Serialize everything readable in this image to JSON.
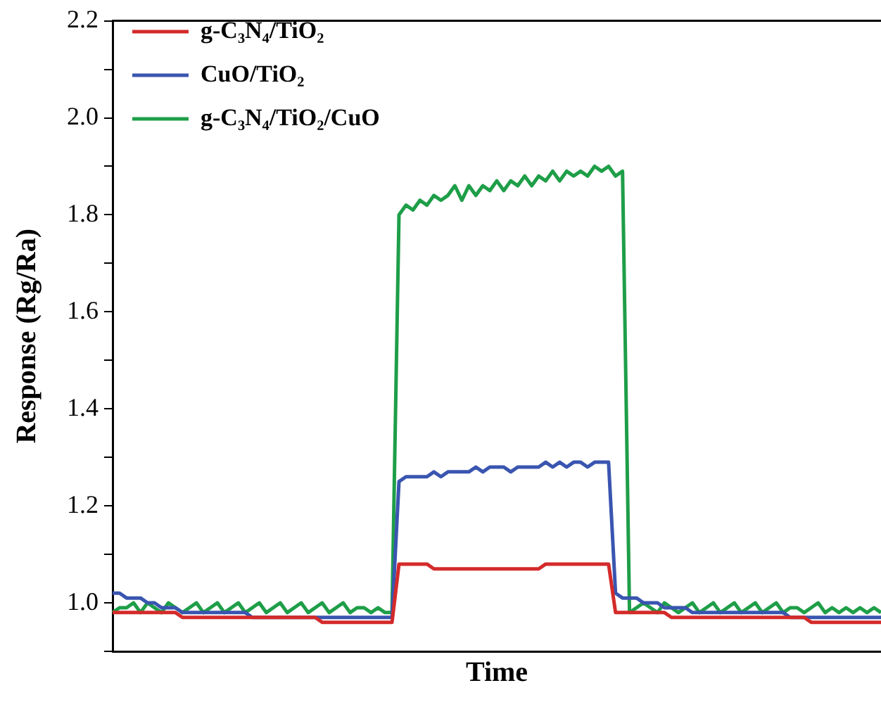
{
  "chart_data": {
    "type": "line",
    "xlabel": "Time",
    "ylabel": "Response (Rg/Ra)",
    "categories": [
      null,
      null,
      null,
      null,
      null,
      null,
      null,
      null,
      null,
      null,
      null,
      null,
      null,
      null,
      null,
      null,
      null,
      null,
      null,
      null,
      null,
      null,
      null,
      null,
      null,
      null,
      null,
      null,
      null,
      null,
      null,
      null,
      null,
      null,
      null,
      null,
      null,
      null,
      null,
      null,
      null,
      null,
      null,
      null,
      null,
      null,
      null,
      null,
      null,
      null,
      null,
      null,
      null,
      null,
      null,
      null,
      null,
      null,
      null,
      null,
      null,
      null,
      null,
      null,
      null,
      null,
      null,
      null,
      null,
      null,
      null,
      null,
      null,
      null,
      null,
      null,
      null,
      null,
      null,
      null,
      null,
      null,
      null,
      null,
      null,
      null,
      null,
      null,
      null,
      null,
      null,
      null,
      null,
      null,
      null,
      null,
      null,
      null,
      null,
      null,
      null,
      null,
      null,
      null,
      null,
      null,
      null,
      null,
      null,
      null,
      null
    ],
    "series": [
      {
        "name": "g-C₃N₄/TiO₂",
        "color": "#d42a2a",
        "values": [
          0.98,
          0.98,
          0.98,
          0.98,
          0.98,
          0.98,
          0.98,
          0.98,
          0.98,
          0.98,
          0.97,
          0.97,
          0.97,
          0.97,
          0.97,
          0.97,
          0.97,
          0.97,
          0.97,
          0.97,
          0.97,
          0.97,
          0.97,
          0.97,
          0.97,
          0.97,
          0.97,
          0.97,
          0.97,
          0.97,
          0.96,
          0.96,
          0.96,
          0.96,
          0.96,
          0.96,
          0.96,
          0.96,
          0.96,
          0.96,
          0.96,
          1.08,
          1.08,
          1.08,
          1.08,
          1.08,
          1.07,
          1.07,
          1.07,
          1.07,
          1.07,
          1.07,
          1.07,
          1.07,
          1.07,
          1.07,
          1.07,
          1.07,
          1.07,
          1.07,
          1.07,
          1.07,
          1.08,
          1.08,
          1.08,
          1.08,
          1.08,
          1.08,
          1.08,
          1.08,
          1.08,
          1.08,
          0.98,
          0.98,
          0.98,
          0.98,
          0.98,
          0.98,
          0.98,
          0.98,
          0.97,
          0.97,
          0.97,
          0.97,
          0.97,
          0.97,
          0.97,
          0.97,
          0.97,
          0.97,
          0.97,
          0.97,
          0.97,
          0.97,
          0.97,
          0.97,
          0.97,
          0.97,
          0.97,
          0.97,
          0.96,
          0.96,
          0.96,
          0.96,
          0.96,
          0.96,
          0.96,
          0.96,
          0.96,
          0.96,
          0.96
        ]
      },
      {
        "name": "CuO/TiO₂",
        "color": "#3a55b0",
        "values": [
          1.02,
          1.02,
          1.01,
          1.01,
          1.01,
          1.0,
          1.0,
          0.99,
          0.99,
          0.99,
          0.98,
          0.98,
          0.98,
          0.98,
          0.98,
          0.98,
          0.98,
          0.98,
          0.98,
          0.98,
          0.97,
          0.97,
          0.97,
          0.97,
          0.97,
          0.97,
          0.97,
          0.97,
          0.97,
          0.97,
          0.97,
          0.97,
          0.97,
          0.97,
          0.97,
          0.97,
          0.97,
          0.97,
          0.97,
          0.97,
          0.97,
          1.25,
          1.26,
          1.26,
          1.26,
          1.26,
          1.27,
          1.26,
          1.27,
          1.27,
          1.27,
          1.27,
          1.28,
          1.27,
          1.28,
          1.28,
          1.28,
          1.27,
          1.28,
          1.28,
          1.28,
          1.28,
          1.29,
          1.28,
          1.29,
          1.28,
          1.29,
          1.29,
          1.28,
          1.29,
          1.29,
          1.29,
          1.02,
          1.01,
          1.01,
          1.01,
          1.0,
          1.0,
          1.0,
          0.99,
          0.99,
          0.99,
          0.99,
          0.98,
          0.98,
          0.98,
          0.98,
          0.98,
          0.98,
          0.98,
          0.98,
          0.98,
          0.98,
          0.98,
          0.98,
          0.98,
          0.98,
          0.97,
          0.97,
          0.97,
          0.97,
          0.97,
          0.97,
          0.97,
          0.97,
          0.97,
          0.97,
          0.97,
          0.97,
          0.97,
          0.97
        ]
      },
      {
        "name": "g-C₃N₄/TiO₂/CuO",
        "color": "#1e9e48",
        "values": [
          0.98,
          0.99,
          0.99,
          1.0,
          0.98,
          1.0,
          0.99,
          0.98,
          1.0,
          0.99,
          0.98,
          0.99,
          1.0,
          0.98,
          0.99,
          1.0,
          0.98,
          0.99,
          1.0,
          0.98,
          0.99,
          1.0,
          0.98,
          0.99,
          1.0,
          0.98,
          0.99,
          1.0,
          0.98,
          0.99,
          1.0,
          0.98,
          0.99,
          1.0,
          0.98,
          0.99,
          0.99,
          0.98,
          0.99,
          0.98,
          0.98,
          1.8,
          1.82,
          1.81,
          1.83,
          1.82,
          1.84,
          1.83,
          1.84,
          1.86,
          1.83,
          1.86,
          1.84,
          1.86,
          1.85,
          1.87,
          1.85,
          1.87,
          1.86,
          1.88,
          1.86,
          1.88,
          1.87,
          1.89,
          1.87,
          1.89,
          1.88,
          1.89,
          1.88,
          1.9,
          1.89,
          1.9,
          1.88,
          1.89,
          0.98,
          0.99,
          1.0,
          0.99,
          0.98,
          1.0,
          0.99,
          0.98,
          0.99,
          1.0,
          0.98,
          0.99,
          1.0,
          0.98,
          0.99,
          1.0,
          0.98,
          0.99,
          1.0,
          0.98,
          0.99,
          1.0,
          0.98,
          0.99,
          0.99,
          0.98,
          0.99,
          1.0,
          0.98,
          0.99,
          0.98,
          0.99,
          0.98,
          0.99,
          0.98,
          0.99,
          0.98
        ]
      }
    ],
    "ylim": [
      0.9,
      2.2
    ],
    "yticks": [
      {
        "value": 0.9,
        "label": null
      },
      {
        "value": 1.0,
        "label": "1.0"
      },
      {
        "value": 1.1,
        "label": null
      },
      1.2,
      {
        "value": 1.3,
        "label": null
      },
      1.4,
      {
        "value": 1.5,
        "label": null
      },
      1.6,
      {
        "value": 1.7,
        "label": null
      },
      1.8,
      {
        "value": 1.9,
        "label": null
      },
      {
        "value": 2.0,
        "label": "2.0"
      },
      {
        "value": 2.1,
        "label": null
      },
      2.2
    ],
    "tick_labels": "y",
    "grid": false,
    "legend": "top left",
    "marker": "none",
    "line_style": "solid"
  }
}
